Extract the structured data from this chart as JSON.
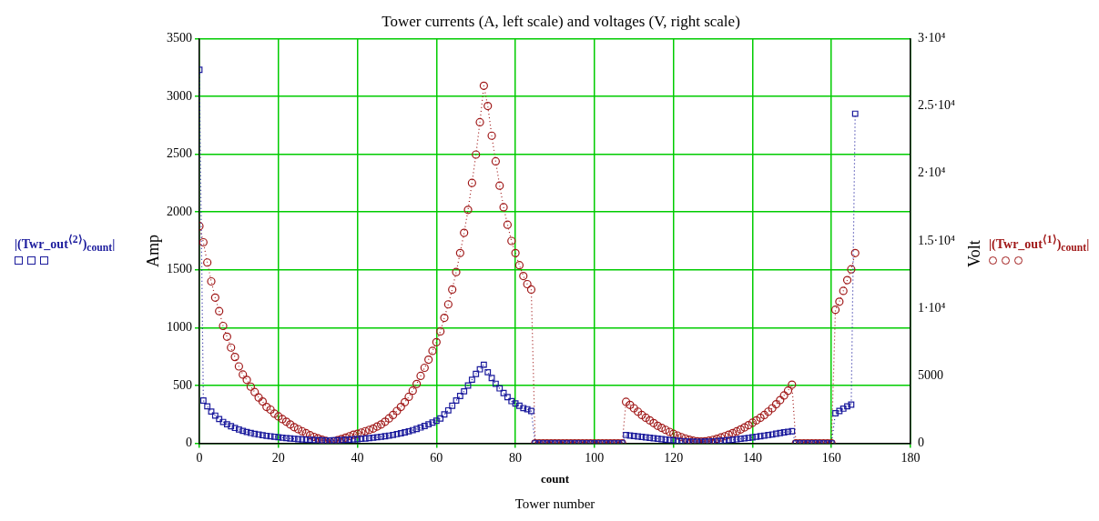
{
  "chart_data": {
    "type": "line",
    "title": "Tower currents (A, left scale) and voltages (V, right scale)",
    "xlabel": "count",
    "ylabel": "Amp",
    "y2label": "Volt",
    "annotations": [
      "Tower number"
    ],
    "x": [
      0,
      1,
      2,
      3,
      4,
      5,
      6,
      7,
      8,
      9,
      10,
      11,
      12,
      13,
      14,
      15,
      16,
      17,
      18,
      19,
      20,
      21,
      22,
      23,
      24,
      25,
      26,
      27,
      28,
      29,
      30,
      31,
      32,
      33,
      34,
      35,
      36,
      37,
      38,
      39,
      40,
      41,
      42,
      43,
      44,
      45,
      46,
      47,
      48,
      49,
      50,
      51,
      52,
      53,
      54,
      55,
      56,
      57,
      58,
      59,
      60,
      61,
      62,
      63,
      64,
      65,
      66,
      67,
      68,
      69,
      70,
      71,
      72,
      73,
      74,
      75,
      76,
      77,
      78,
      79,
      80,
      81,
      82,
      83,
      84,
      85,
      86,
      87,
      88,
      89,
      90,
      91,
      92,
      93,
      94,
      95,
      96,
      97,
      98,
      99,
      100,
      101,
      102,
      103,
      104,
      105,
      106,
      107,
      108,
      109,
      110,
      111,
      112,
      113,
      114,
      115,
      116,
      117,
      118,
      119,
      120,
      121,
      122,
      123,
      124,
      125,
      126,
      127,
      128,
      129,
      130,
      131,
      132,
      133,
      134,
      135,
      136,
      137,
      138,
      139,
      140,
      141,
      142,
      143,
      144,
      145,
      146,
      147,
      148,
      149,
      150,
      151,
      152,
      153,
      154,
      155,
      156,
      157,
      158,
      159,
      160,
      161,
      162,
      163,
      164,
      165,
      166
    ],
    "series": [
      {
        "name": "|(Twr_out$^{⟨2⟩}$)$_{count}$|",
        "color": "#1a1a9c",
        "marker": "square",
        "values": [
          3230,
          370,
          320,
          275,
          240,
          210,
          185,
          165,
          148,
          133,
          120,
          108,
          98,
          90,
          82,
          76,
          70,
          65,
          61,
          57,
          53,
          49,
          45,
          42,
          39,
          36,
          34,
          32,
          30,
          28,
          27,
          26,
          25,
          25,
          26,
          27,
          28,
          30,
          32,
          34,
          36,
          39,
          42,
          45,
          49,
          53,
          57,
          62,
          67,
          73,
          80,
          87,
          95,
          104,
          114,
          125,
          137,
          150,
          165,
          180,
          195,
          215,
          250,
          285,
          325,
          370,
          410,
          450,
          500,
          550,
          600,
          640,
          680,
          615,
          565,
          515,
          475,
          435,
          400,
          365,
          345,
          325,
          305,
          295,
          280,
          0,
          0,
          0,
          0,
          0,
          0,
          0,
          0,
          0,
          0,
          0,
          0,
          0,
          0,
          0,
          0,
          0,
          0,
          0,
          0,
          0,
          0,
          0,
          72,
          68,
          64,
          60,
          56,
          52,
          48,
          44,
          40,
          36,
          32,
          29,
          26,
          23,
          20,
          18,
          16,
          15,
          14,
          14,
          15,
          16,
          18,
          20,
          22,
          25,
          28,
          31,
          35,
          39,
          43,
          47,
          52,
          57,
          62,
          67,
          72,
          77,
          83,
          89,
          95,
          100,
          105,
          0,
          0,
          0,
          0,
          0,
          0,
          0,
          0,
          0,
          0,
          260,
          280,
          300,
          320,
          335,
          2850
        ]
      },
      {
        "name": "|(Twr_out$^{⟨1⟩}$)$_{count}$|",
        "color": "#a01818",
        "marker": "circle",
        "axis": "y2",
        "values": [
          16100,
          14900,
          13400,
          12000,
          10800,
          9800,
          8700,
          7900,
          7100,
          6400,
          5700,
          5100,
          4700,
          4200,
          3800,
          3400,
          3100,
          2700,
          2500,
          2200,
          2000,
          1800,
          1600,
          1400,
          1200,
          1050,
          900,
          750,
          600,
          480,
          370,
          270,
          190,
          140,
          160,
          230,
          320,
          420,
          530,
          640,
          700,
          800,
          900,
          1000,
          1100,
          1250,
          1400,
          1600,
          1850,
          2100,
          2400,
          2700,
          3050,
          3450,
          3900,
          4400,
          5000,
          5600,
          6200,
          6850,
          7500,
          8300,
          9300,
          10300,
          11400,
          12700,
          14100,
          15600,
          17300,
          19300,
          21400,
          23800,
          26500,
          25000,
          22800,
          20900,
          19100,
          17500,
          16200,
          15000,
          14100,
          13200,
          12400,
          11800,
          11400,
          0,
          0,
          0,
          0,
          0,
          0,
          0,
          0,
          0,
          0,
          0,
          0,
          0,
          0,
          0,
          0,
          0,
          0,
          0,
          0,
          0,
          0,
          0,
          3080,
          2850,
          2600,
          2350,
          2100,
          1900,
          1700,
          1500,
          1300,
          1150,
          1000,
          850,
          700,
          580,
          460,
          360,
          270,
          200,
          150,
          130,
          150,
          200,
          260,
          340,
          430,
          530,
          640,
          760,
          890,
          1030,
          1180,
          1350,
          1530,
          1700,
          1900,
          2100,
          2350,
          2600,
          2900,
          3200,
          3550,
          3900,
          4350,
          0,
          0,
          0,
          0,
          0,
          0,
          0,
          0,
          0,
          0,
          9900,
          10500,
          11300,
          12100,
          12900,
          14100
        ]
      }
    ],
    "xlim": [
      0,
      180
    ],
    "xticks": [
      0,
      20,
      40,
      60,
      80,
      100,
      120,
      140,
      160,
      180
    ],
    "ylim": [
      0,
      3500
    ],
    "yticks": [
      0,
      500,
      1000,
      1500,
      2000,
      2500,
      3000,
      3500
    ],
    "y2lim": [
      0,
      30000
    ],
    "y2ticks": [
      0,
      5000,
      {
        "value": 10000,
        "label": "1·10⁴"
      },
      {
        "value": 15000,
        "label": "1.5·10⁴"
      },
      {
        "value": 20000,
        "label": "2·10⁴"
      },
      {
        "value": 25000,
        "label": "2.5·10⁴"
      },
      {
        "value": 30000,
        "label": "3·10⁴"
      }
    ],
    "grid": true,
    "legend": "left",
    "line_style": "dotted"
  }
}
